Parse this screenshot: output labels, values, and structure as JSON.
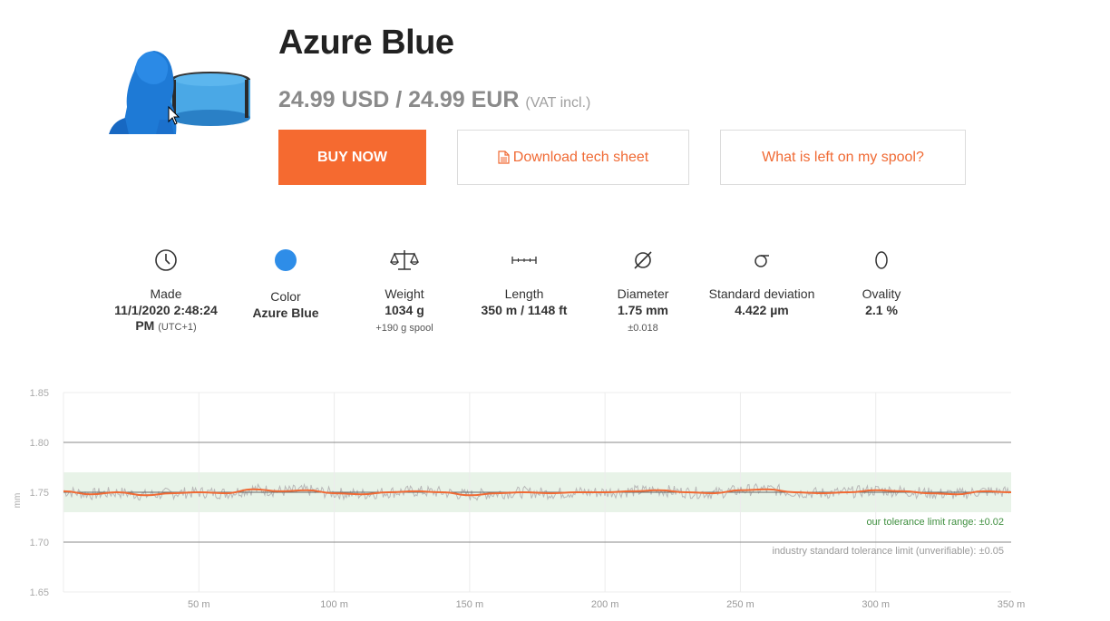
{
  "product": {
    "title": "Azure Blue",
    "price": "24.99 USD / 24.99 EUR",
    "vat": "(VAT incl.)"
  },
  "buttons": {
    "buy": "BUY NOW",
    "tech_sheet": "Download tech sheet",
    "spool": "What is left on my spool?"
  },
  "specs": {
    "made": {
      "label": "Made",
      "value_line1": "11/1/2020 2:48:24",
      "value_line2": "PM",
      "tz": "(UTC+1)"
    },
    "color": {
      "label": "Color",
      "value": "Azure Blue",
      "swatch": "#2e8de8"
    },
    "weight": {
      "label": "Weight",
      "value": "1034 g",
      "note": "+190 g spool"
    },
    "length": {
      "label": "Length",
      "value": "350 m / 1148 ft"
    },
    "diameter": {
      "label": "Diameter",
      "value": "1.75 mm",
      "note": "±0.018"
    },
    "stddev": {
      "label": "Standard deviation",
      "value": "4.422 µm"
    },
    "ovality": {
      "label": "Ovality",
      "value": "2.1 %"
    }
  },
  "colors": {
    "accent": "#f56a30",
    "link": "#f06a34",
    "band": "#e8f3e8",
    "raw": "#b8b8b8",
    "smooth": "#f06a34"
  },
  "chart_data": {
    "type": "line",
    "ylabel": "mm",
    "ylim": [
      1.65,
      1.85
    ],
    "xlim": [
      0,
      350
    ],
    "y_ticks": [
      "1.65",
      "1.70",
      "1.75",
      "1.80",
      "1.85"
    ],
    "x_ticks": [
      "50 m",
      "100 m",
      "150 m",
      "200 m",
      "250 m",
      "300 m",
      "350 m"
    ],
    "x_tick_values": [
      50,
      100,
      150,
      200,
      250,
      300,
      350
    ],
    "tolerance_band": [
      1.73,
      1.77
    ],
    "tolerance_label": "our tolerance limit range: ±0.02",
    "industry_lines": [
      1.7,
      1.8
    ],
    "industry_label": "industry standard tolerance limit (unverifiable): ±0.05",
    "nominal": 1.75,
    "series": [
      {
        "x": [
          0,
          10,
          20,
          30,
          40,
          50,
          60,
          70,
          80,
          90,
          100,
          110,
          120,
          130,
          140,
          150,
          160,
          170,
          180,
          190,
          200,
          210,
          220,
          230,
          240,
          250,
          260,
          270,
          280,
          290,
          300,
          310,
          320,
          330,
          340,
          350
        ],
        "values": [
          1.751,
          1.748,
          1.75,
          1.747,
          1.749,
          1.75,
          1.749,
          1.753,
          1.751,
          1.752,
          1.749,
          1.748,
          1.75,
          1.751,
          1.75,
          1.747,
          1.749,
          1.75,
          1.749,
          1.75,
          1.75,
          1.751,
          1.752,
          1.75,
          1.749,
          1.752,
          1.753,
          1.75,
          1.749,
          1.75,
          1.752,
          1.751,
          1.749,
          1.748,
          1.751,
          1.75
        ]
      }
    ]
  }
}
